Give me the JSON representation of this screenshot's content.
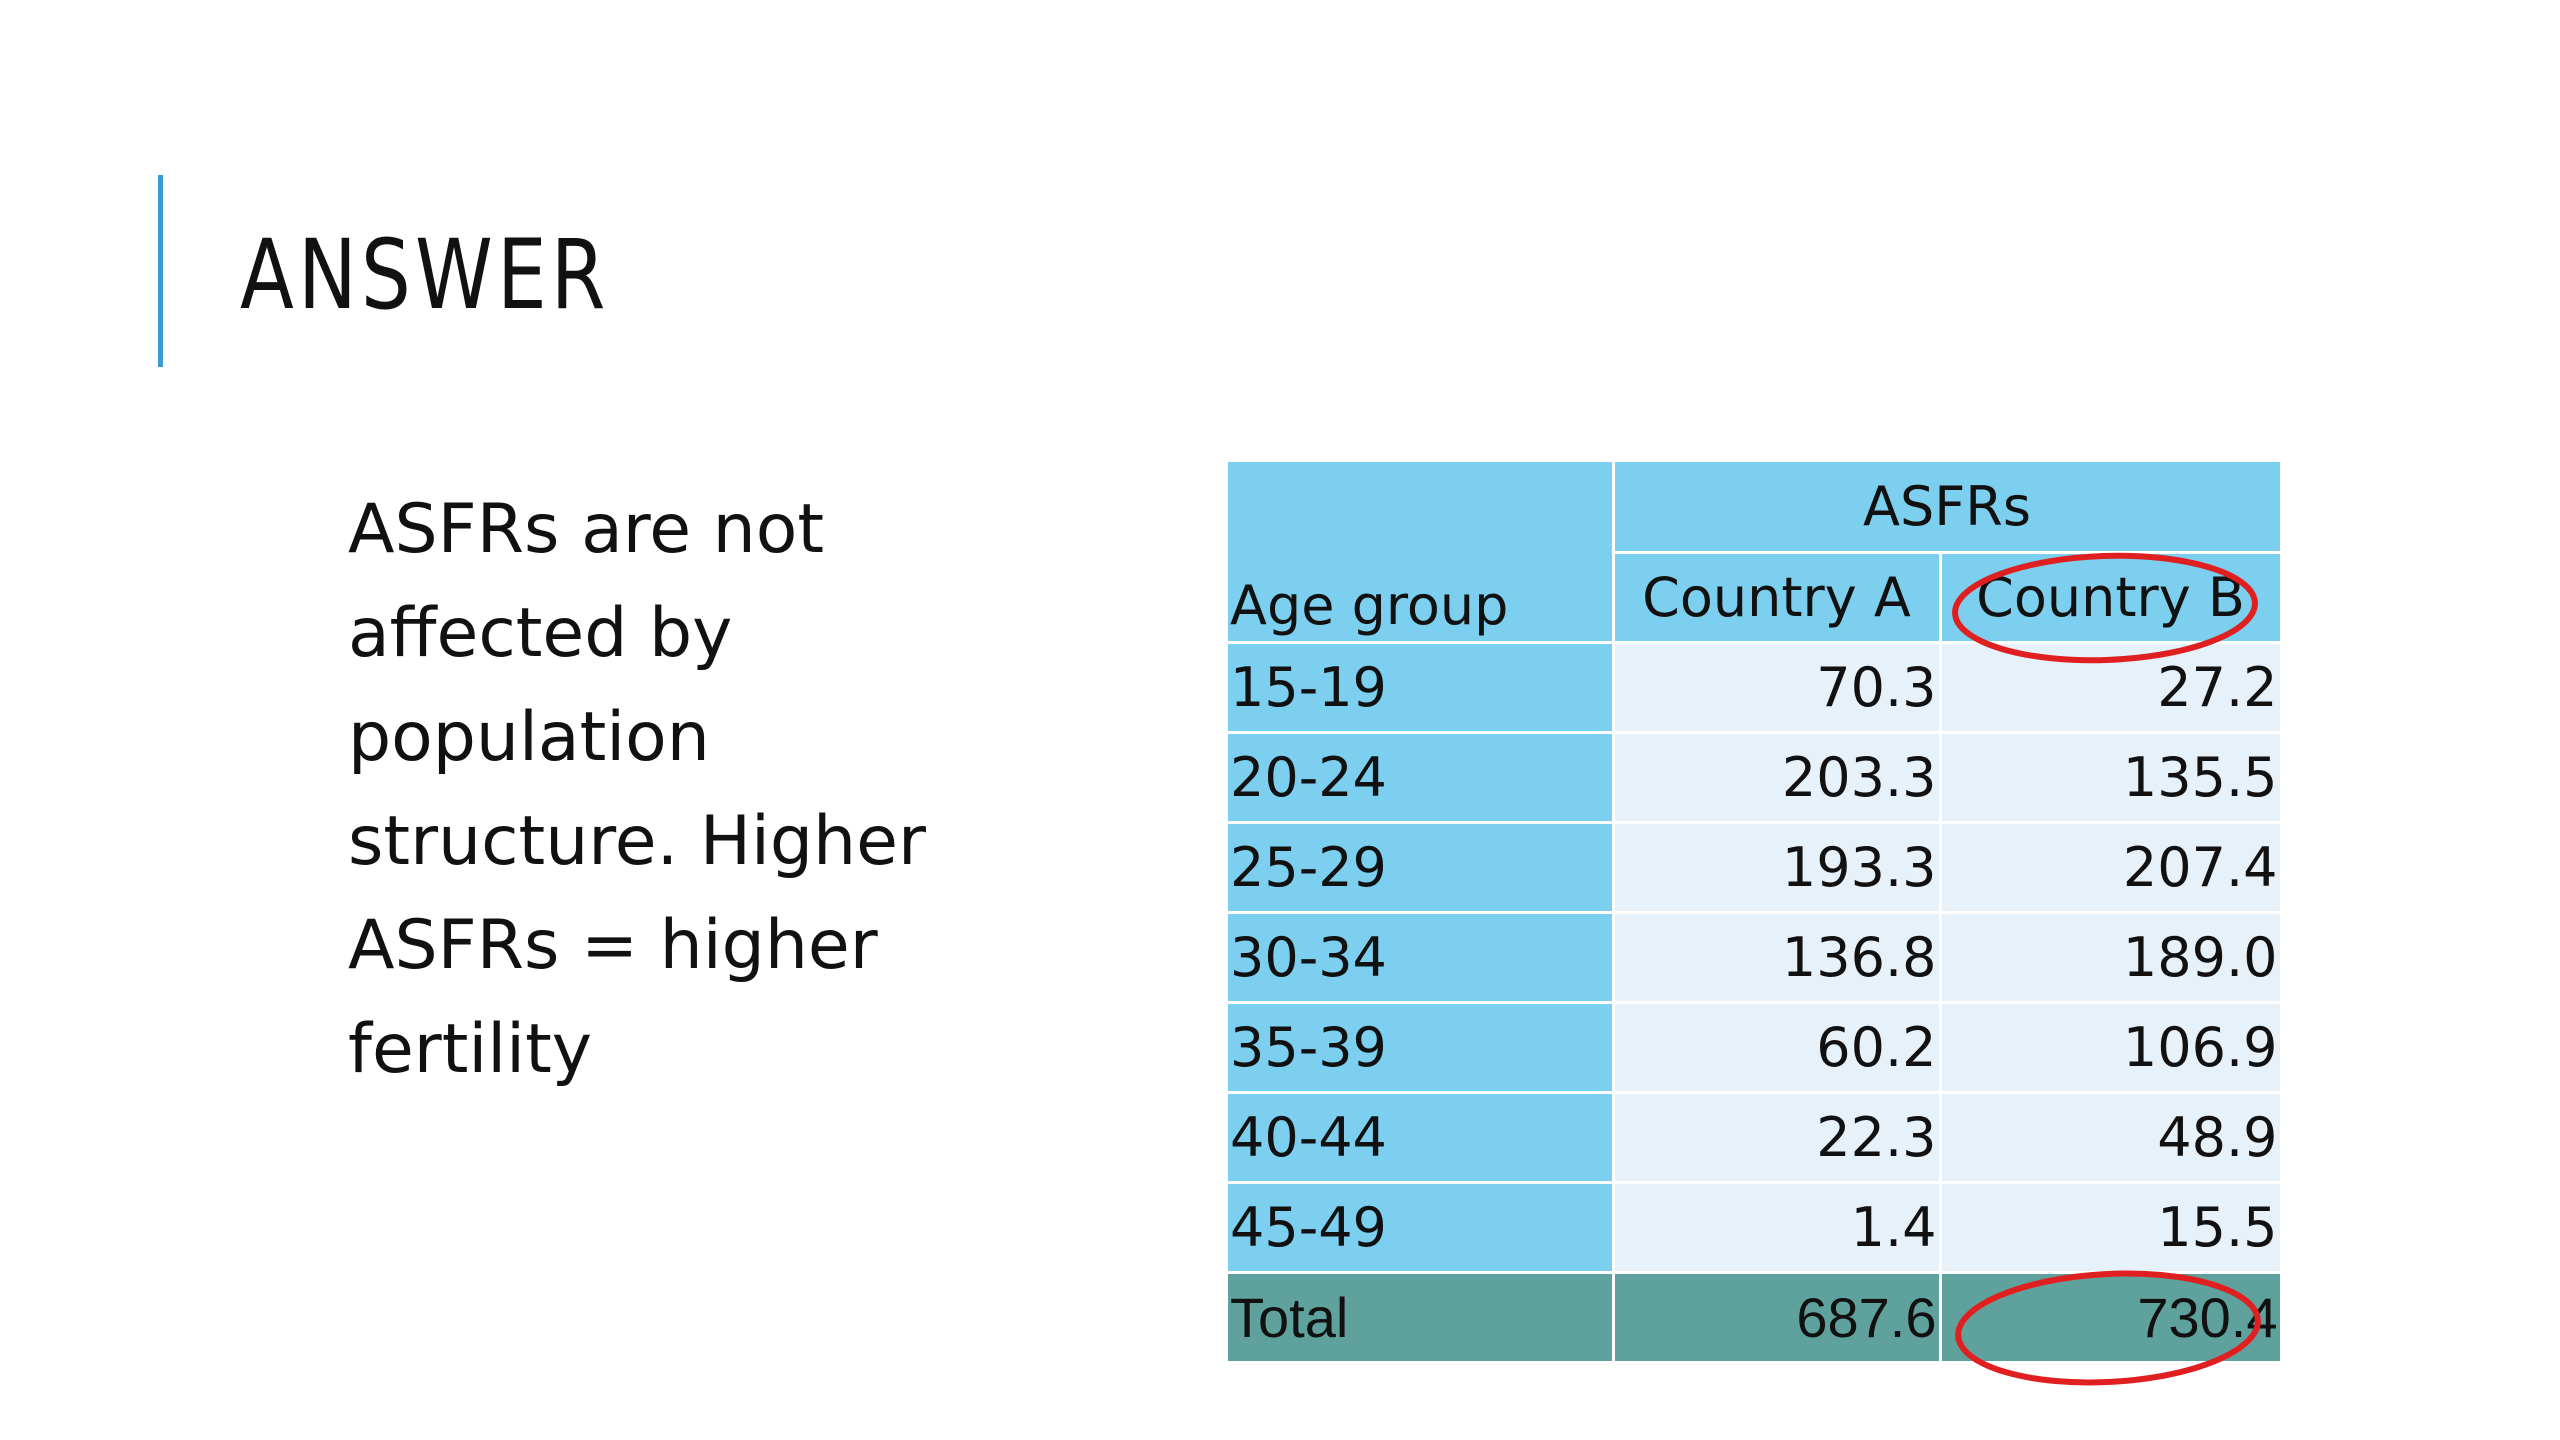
{
  "slide": {
    "title": "ANSWER",
    "body_text": "ASFRs are not\naffected by\npopulation\nstructure.  Higher\nASFRs = higher\nfertility",
    "accent_color": "#3a9bd4",
    "annotation_color": "#e02020"
  },
  "table": {
    "group_header": "ASFRs",
    "col_age": "Age group",
    "col_a": "Country A",
    "col_b": "Country B",
    "rows": [
      {
        "age": "15-19",
        "a": "70.3",
        "b": "27.2"
      },
      {
        "age": "20-24",
        "a": "203.3",
        "b": "135.5"
      },
      {
        "age": "25-29",
        "a": "193.3",
        "b": "207.4"
      },
      {
        "age": "30-34",
        "a": "136.8",
        "b": "189.0"
      },
      {
        "age": "35-39",
        "a": "60.2",
        "b": "106.9"
      },
      {
        "age": "40-44",
        "a": "22.3",
        "b": "48.9"
      },
      {
        "age": "45-49",
        "a": "1.4",
        "b": "15.5"
      }
    ],
    "total": {
      "label": "Total",
      "a": "687.6",
      "b": "730.4"
    },
    "colors": {
      "header_bg": "#7ccfee",
      "value_bg": "#e7f1fa",
      "total_bg": "#5fa19c"
    }
  }
}
